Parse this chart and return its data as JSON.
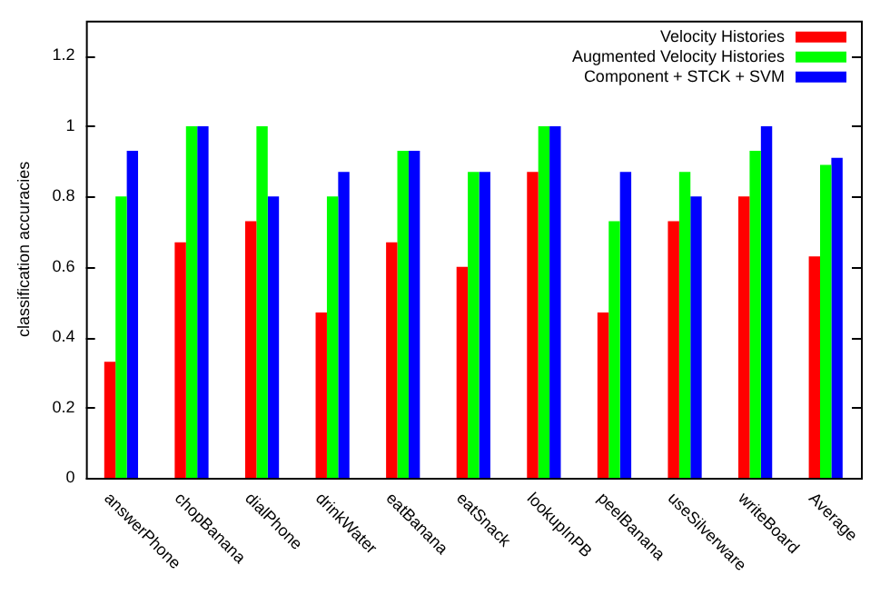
{
  "chart_data": {
    "type": "bar",
    "ylabel": "classification accuracies",
    "categories": [
      "answerPhone",
      "chopBanana",
      "dialPhone",
      "drinkWater",
      "eatBanana",
      "eatSnack",
      "lookupInPB",
      "peelBanana",
      "useSilverware",
      "writeBoard",
      "Average"
    ],
    "series": [
      {
        "name": "Velocity Histories",
        "color": "#ff0000",
        "values": [
          0.33,
          0.67,
          0.73,
          0.47,
          0.67,
          0.6,
          0.87,
          0.47,
          0.73,
          0.8,
          0.63
        ]
      },
      {
        "name": "Augmented Velocity Histories",
        "color": "#00ff00",
        "values": [
          0.8,
          1,
          1,
          0.8,
          0.93,
          0.87,
          1,
          0.73,
          0.87,
          0.93,
          0.89
        ]
      },
      {
        "name": "Component + STCK + SVM",
        "color": "#0000ff",
        "values": [
          0.93,
          1,
          0.8,
          0.87,
          0.93,
          0.87,
          1,
          0.87,
          0.8,
          1,
          0.91
        ]
      }
    ],
    "ylim": [
      0,
      1.3
    ],
    "yticks": [
      0,
      0.2,
      0.4,
      0.6,
      0.8,
      1,
      1.2
    ],
    "grid": false,
    "legend": "top right"
  }
}
